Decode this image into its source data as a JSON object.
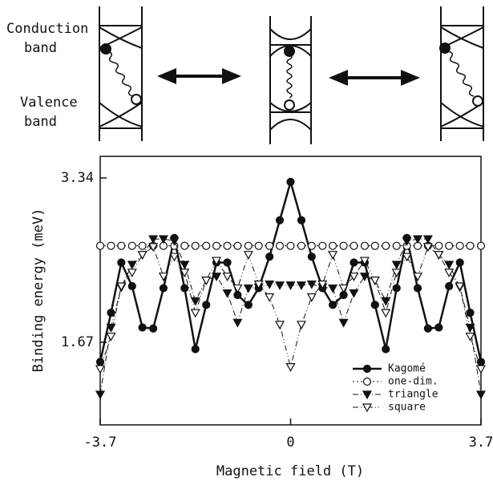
{
  "diagram": {
    "conduction": [
      "Conduction",
      "band"
    ],
    "valence": [
      "Valence",
      "band"
    ]
  },
  "chart_data": {
    "type": "line",
    "x_label": "Magnetic field (T)",
    "y_label": "Binding energy (meV)",
    "x": [
      -3.7,
      -3.49,
      -3.29,
      -3.08,
      -2.88,
      -2.67,
      -2.47,
      -2.26,
      -2.06,
      -1.85,
      -1.64,
      -1.44,
      -1.23,
      -1.03,
      -0.82,
      -0.62,
      -0.41,
      -0.21,
      0,
      0.21,
      0.41,
      0.62,
      0.82,
      1.03,
      1.23,
      1.44,
      1.64,
      1.85,
      2.06,
      2.26,
      2.47,
      2.67,
      2.88,
      3.08,
      3.29,
      3.49,
      3.7
    ],
    "xlim": [
      -3.7,
      3.7
    ],
    "xticks": [
      -3.7,
      0,
      3.7
    ],
    "ylim": [
      0.83,
      3.56
    ],
    "yticks": [
      1.67,
      3.34
    ],
    "legend": "lower right",
    "series": [
      {
        "name": "Kagomé",
        "color": "#111111",
        "marker": "circle",
        "fill": true,
        "dash": "none",
        "width": 2.5,
        "values": [
          1.47,
          1.97,
          2.48,
          2.24,
          1.82,
          1.81,
          2.22,
          2.73,
          2.22,
          1.6,
          2.05,
          2.48,
          2.48,
          2.15,
          2.05,
          2.22,
          2.54,
          2.91,
          3.3,
          2.91,
          2.54,
          2.22,
          2.05,
          2.15,
          2.48,
          2.48,
          2.05,
          1.6,
          2.22,
          2.73,
          2.22,
          1.81,
          1.82,
          2.24,
          2.48,
          1.97,
          1.47
        ]
      },
      {
        "name": "one-dim.",
        "color": "#111111",
        "marker": "circle",
        "fill": false,
        "dash": "2,3",
        "width": 1,
        "values": [
          2.65,
          2.65,
          2.65,
          2.65,
          2.65,
          2.65,
          2.65,
          2.65,
          2.65,
          2.65,
          2.65,
          2.65,
          2.65,
          2.65,
          2.65,
          2.65,
          2.65,
          2.65,
          2.65,
          2.65,
          2.65,
          2.65,
          2.65,
          2.65,
          2.65,
          2.65,
          2.65,
          2.65,
          2.65,
          2.65,
          2.65,
          2.65,
          2.65,
          2.65,
          2.65,
          2.65,
          2.65
        ]
      },
      {
        "name": "triangle",
        "color": "#111111",
        "marker": "triangle",
        "fill": true,
        "dash": "7,3,1,3",
        "width": 1,
        "values": [
          1.14,
          1.82,
          2.23,
          2.46,
          2.56,
          2.72,
          2.72,
          2.7,
          2.46,
          2.09,
          2.3,
          2.34,
          2.17,
          1.87,
          2.22,
          2.23,
          2.26,
          2.25,
          2.25,
          2.25,
          2.26,
          2.23,
          2.22,
          1.87,
          2.17,
          2.34,
          2.3,
          2.09,
          2.46,
          2.7,
          2.72,
          2.72,
          2.56,
          2.46,
          2.23,
          1.82,
          1.14
        ]
      },
      {
        "name": "square",
        "color": "#111111",
        "marker": "triangle",
        "fill": false,
        "dash": "7,3,1,3,1,3",
        "width": 1,
        "values": [
          1.4,
          1.73,
          2.24,
          2.38,
          2.56,
          2.64,
          2.34,
          2.54,
          2.38,
          1.97,
          2.3,
          2.5,
          2.34,
          2.22,
          2.56,
          2.26,
          2.13,
          1.85,
          1.42,
          1.85,
          2.13,
          2.26,
          2.56,
          2.22,
          2.34,
          2.5,
          2.3,
          1.97,
          2.38,
          2.54,
          2.34,
          2.64,
          2.56,
          2.38,
          2.24,
          1.73,
          1.4
        ]
      }
    ]
  }
}
